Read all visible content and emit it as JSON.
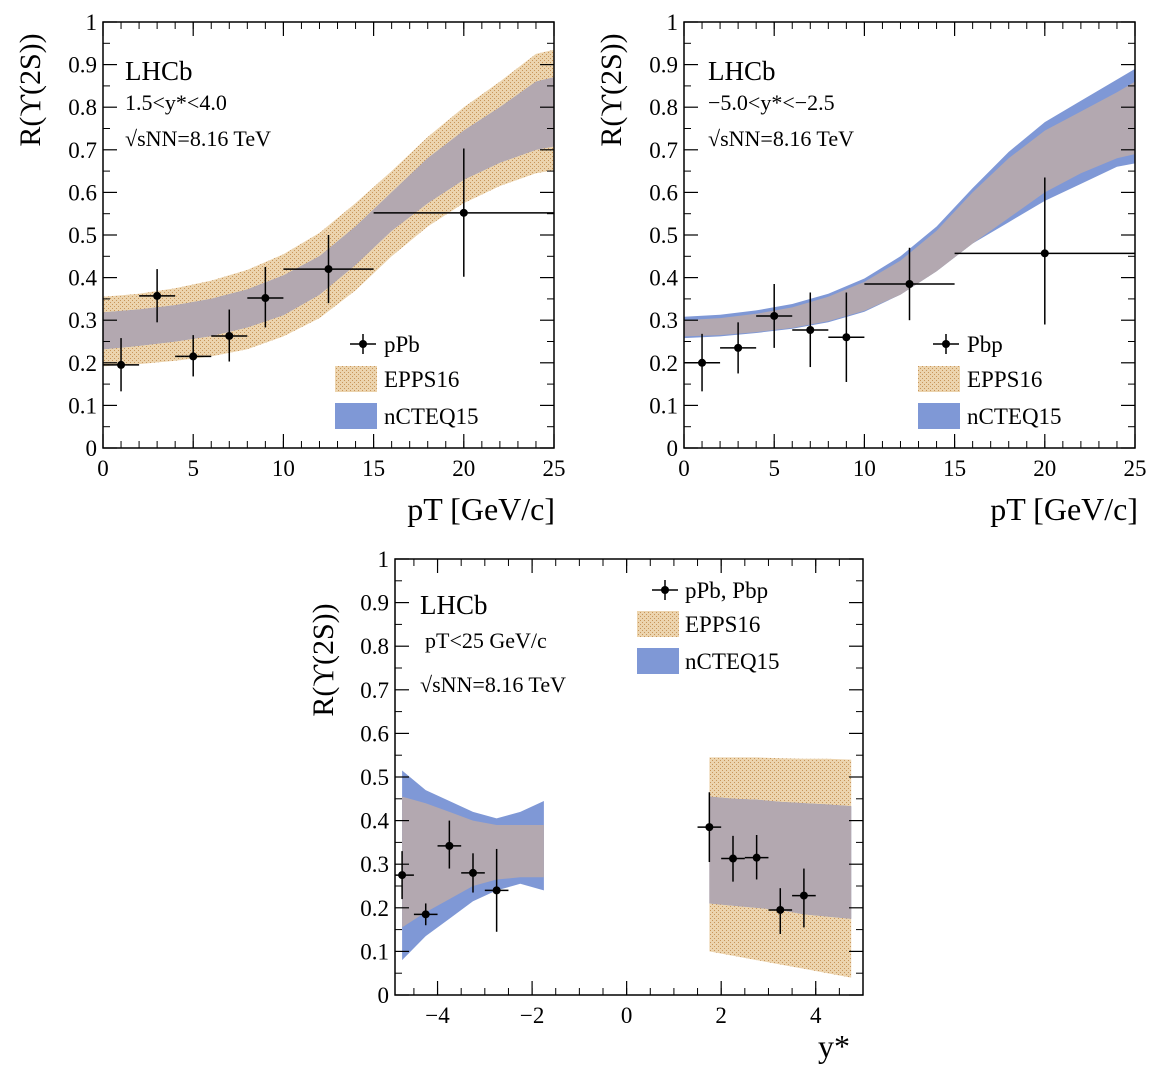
{
  "colors": {
    "epps_fill": "#ecd4ae",
    "epps_dots": "#c8955a",
    "nct_fill": "#7f98d6",
    "overlap_fill": "#b3a8b0",
    "points": "#000000"
  },
  "chart_data": [
    {
      "type": "scatter",
      "experiment": "LHCb",
      "conditions": [
        "1.5<y*<4.0",
        "√sNN=8.16 TeV"
      ],
      "xlabel": "pT [GeV/c]",
      "ylabel": "R(ϒ(2S))",
      "xlim": [
        0,
        25
      ],
      "ylim": [
        0,
        1
      ],
      "xticks": [
        "0",
        "5",
        "10",
        "15",
        "20",
        "25"
      ],
      "yticks": [
        "0",
        "0.1",
        "0.2",
        "0.3",
        "0.4",
        "0.5",
        "0.6",
        "0.7",
        "0.8",
        "0.9",
        "1"
      ],
      "legend": [
        "pPb",
        "EPPS16",
        "nCTEQ15"
      ],
      "legend_position": "bottom-right",
      "series": [
        {
          "name": "pPb",
          "type": "points",
          "points": [
            {
              "x": 1,
              "xerr": 1,
              "y": 0.195,
              "ylo": 0.133,
              "yhi": 0.258
            },
            {
              "x": 3,
              "xerr": 1,
              "y": 0.357,
              "ylo": 0.295,
              "yhi": 0.42
            },
            {
              "x": 5,
              "xerr": 1,
              "y": 0.215,
              "ylo": 0.168,
              "yhi": 0.265
            },
            {
              "x": 7,
              "xerr": 1,
              "y": 0.263,
              "ylo": 0.203,
              "yhi": 0.325
            },
            {
              "x": 9,
              "xerr": 1,
              "y": 0.352,
              "ylo": 0.283,
              "yhi": 0.425
            },
            {
              "x": 12.5,
              "xerr": 2.5,
              "y": 0.42,
              "ylo": 0.34,
              "yhi": 0.5
            },
            {
              "x": 20,
              "xerr": 5,
              "y": 0.552,
              "ylo": 0.402,
              "yhi": 0.703
            }
          ]
        },
        {
          "name": "EPPS16",
          "type": "band",
          "x": [
            0,
            2,
            4,
            6,
            8,
            10,
            12,
            14,
            16,
            18,
            20,
            22,
            24,
            25
          ],
          "low": [
            0.192,
            0.197,
            0.205,
            0.215,
            0.232,
            0.262,
            0.305,
            0.37,
            0.45,
            0.52,
            0.575,
            0.615,
            0.645,
            0.652
          ],
          "high": [
            0.355,
            0.362,
            0.375,
            0.393,
            0.418,
            0.455,
            0.505,
            0.575,
            0.65,
            0.73,
            0.8,
            0.86,
            0.925,
            0.935
          ]
        },
        {
          "name": "nCTEQ15",
          "type": "band",
          "x": [
            0,
            2,
            4,
            6,
            8,
            10,
            12,
            14,
            16,
            18,
            20,
            22,
            24,
            25
          ],
          "low": [
            0.232,
            0.24,
            0.25,
            0.263,
            0.283,
            0.312,
            0.36,
            0.43,
            0.51,
            0.575,
            0.63,
            0.67,
            0.7,
            0.708
          ],
          "high": [
            0.318,
            0.325,
            0.335,
            0.35,
            0.372,
            0.405,
            0.45,
            0.52,
            0.6,
            0.68,
            0.745,
            0.8,
            0.86,
            0.87
          ]
        }
      ]
    },
    {
      "type": "scatter",
      "experiment": "LHCb",
      "conditions": [
        "−5.0<y*<−2.5",
        "√sNN=8.16 TeV"
      ],
      "xlabel": "pT [GeV/c]",
      "ylabel": "R(ϒ(2S))",
      "xlim": [
        0,
        25
      ],
      "ylim": [
        0,
        1
      ],
      "xticks": [
        "0",
        "5",
        "10",
        "15",
        "20",
        "25"
      ],
      "yticks": [
        "0",
        "0.1",
        "0.2",
        "0.3",
        "0.4",
        "0.5",
        "0.6",
        "0.7",
        "0.8",
        "0.9",
        "1"
      ],
      "legend": [
        "Pbp",
        "EPPS16",
        "nCTEQ15"
      ],
      "legend_position": "bottom-right",
      "series": [
        {
          "name": "Pbp",
          "type": "points",
          "points": [
            {
              "x": 1,
              "xerr": 1,
              "y": 0.2,
              "ylo": 0.133,
              "yhi": 0.268
            },
            {
              "x": 3,
              "xerr": 1,
              "y": 0.235,
              "ylo": 0.175,
              "yhi": 0.295
            },
            {
              "x": 5,
              "xerr": 1,
              "y": 0.31,
              "ylo": 0.235,
              "yhi": 0.385
            },
            {
              "x": 7,
              "xerr": 1,
              "y": 0.277,
              "ylo": 0.19,
              "yhi": 0.365
            },
            {
              "x": 9,
              "xerr": 1,
              "y": 0.26,
              "ylo": 0.155,
              "yhi": 0.365
            },
            {
              "x": 12.5,
              "xerr": 2.5,
              "y": 0.385,
              "ylo": 0.3,
              "yhi": 0.47
            },
            {
              "x": 20,
              "xerr": 5,
              "y": 0.457,
              "ylo": 0.29,
              "yhi": 0.635
            }
          ]
        },
        {
          "name": "EPPS16",
          "type": "band",
          "x": [
            0,
            2,
            4,
            6,
            8,
            10,
            12,
            14,
            16,
            18,
            20,
            22,
            24,
            25
          ],
          "low": [
            0.262,
            0.265,
            0.272,
            0.282,
            0.298,
            0.322,
            0.36,
            0.415,
            0.48,
            0.54,
            0.6,
            0.645,
            0.68,
            0.69
          ],
          "high": [
            0.3,
            0.305,
            0.315,
            0.33,
            0.355,
            0.39,
            0.44,
            0.51,
            0.6,
            0.68,
            0.745,
            0.79,
            0.835,
            0.86
          ]
        },
        {
          "name": "nCTEQ15",
          "type": "band",
          "x": [
            0,
            2,
            4,
            6,
            8,
            10,
            12,
            14,
            16,
            18,
            20,
            22,
            24,
            25
          ],
          "low": [
            0.258,
            0.262,
            0.27,
            0.28,
            0.295,
            0.32,
            0.36,
            0.415,
            0.48,
            0.53,
            0.58,
            0.62,
            0.66,
            0.668
          ],
          "high": [
            0.308,
            0.313,
            0.323,
            0.338,
            0.362,
            0.398,
            0.45,
            0.52,
            0.61,
            0.695,
            0.765,
            0.815,
            0.865,
            0.89
          ]
        }
      ]
    },
    {
      "type": "scatter",
      "experiment": "LHCb",
      "conditions": [
        "pT<25 GeV/c",
        "√sNN=8.16 TeV"
      ],
      "xlabel": "y*",
      "ylabel": "R(ϒ(2S))",
      "xlim": [
        -4.9,
        5.0
      ],
      "ylim": [
        0,
        1
      ],
      "xticks": [
        "−4",
        "−2",
        "0",
        "2",
        "4"
      ],
      "yticks": [
        "0",
        "0.1",
        "0.2",
        "0.3",
        "0.4",
        "0.5",
        "0.6",
        "0.7",
        "0.8",
        "0.9",
        "1"
      ],
      "legend": [
        "pPb, Pbp",
        "EPPS16",
        "nCTEQ15"
      ],
      "legend_position": "top-right",
      "series": [
        {
          "name": "pPb, Pbp",
          "type": "points",
          "points": [
            {
              "x": -4.75,
              "xerr": 0.25,
              "y": 0.275,
              "ylo": 0.22,
              "yhi": 0.33
            },
            {
              "x": -4.25,
              "xerr": 0.25,
              "y": 0.185,
              "ylo": 0.16,
              "yhi": 0.21
            },
            {
              "x": -3.75,
              "xerr": 0.25,
              "y": 0.342,
              "ylo": 0.29,
              "yhi": 0.4
            },
            {
              "x": -3.25,
              "xerr": 0.25,
              "y": 0.28,
              "ylo": 0.235,
              "yhi": 0.325
            },
            {
              "x": -2.75,
              "xerr": 0.25,
              "y": 0.24,
              "ylo": 0.145,
              "yhi": 0.335
            },
            {
              "x": 1.75,
              "xerr": 0.25,
              "y": 0.385,
              "ylo": 0.305,
              "yhi": 0.465
            },
            {
              "x": 2.25,
              "xerr": 0.25,
              "y": 0.313,
              "ylo": 0.26,
              "yhi": 0.365
            },
            {
              "x": 2.75,
              "xerr": 0.25,
              "y": 0.315,
              "ylo": 0.265,
              "yhi": 0.367
            },
            {
              "x": 3.25,
              "xerr": 0.25,
              "y": 0.195,
              "ylo": 0.14,
              "yhi": 0.245
            },
            {
              "x": 3.75,
              "xerr": 0.25,
              "y": 0.228,
              "ylo": 0.155,
              "yhi": 0.29
            }
          ]
        },
        {
          "name": "EPPS16",
          "type": "band",
          "segments": [
            {
              "x": [
                -4.75,
                -4.25,
                -3.75,
                -3.25,
                -2.75,
                -2.25,
                -1.75
              ],
              "low": [
                0.155,
                0.19,
                0.22,
                0.25,
                0.265,
                0.27,
                0.27
              ],
              "high": [
                0.455,
                0.44,
                0.42,
                0.4,
                0.39,
                0.39,
                0.39
              ]
            },
            {
              "x": [
                1.75,
                2.25,
                2.75,
                3.25,
                3.75,
                4.25,
                4.75
              ],
              "low": [
                0.1,
                0.09,
                0.08,
                0.07,
                0.06,
                0.05,
                0.04
              ],
              "high": [
                0.545,
                0.545,
                0.545,
                0.543,
                0.542,
                0.542,
                0.54
              ]
            }
          ]
        },
        {
          "name": "nCTEQ15",
          "type": "band",
          "segments": [
            {
              "x": [
                -4.75,
                -4.25,
                -3.75,
                -3.25,
                -2.75,
                -2.25,
                -1.75
              ],
              "low": [
                0.08,
                0.135,
                0.175,
                0.215,
                0.24,
                0.255,
                0.24
              ],
              "high": [
                0.515,
                0.47,
                0.445,
                0.42,
                0.405,
                0.42,
                0.445
              ]
            },
            {
              "x": [
                1.75,
                2.25,
                2.75,
                3.25,
                3.75,
                4.25,
                4.75
              ],
              "low": [
                0.21,
                0.205,
                0.2,
                0.195,
                0.185,
                0.18,
                0.175
              ],
              "high": [
                0.455,
                0.45,
                0.448,
                0.443,
                0.44,
                0.437,
                0.433
              ]
            }
          ]
        }
      ]
    }
  ]
}
